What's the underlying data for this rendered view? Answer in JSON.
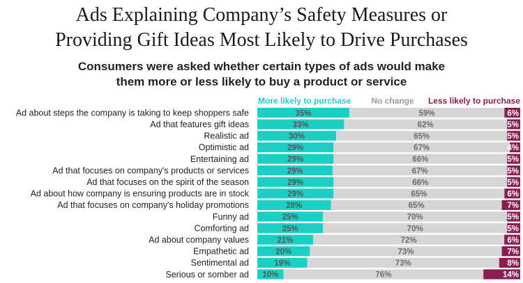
{
  "title_line1": "Ads Explaining Company’s Safety Measures or",
  "title_line2": "Providing Gift Ideas Most Likely to Drive Purchases",
  "subtitle_line1": "Consumers were asked whether certain types of ads would make",
  "subtitle_line2": "them more or less likely to buy a product or service",
  "colors": {
    "more": "#1ccfc5",
    "no_change": "#d6d6d6",
    "less": "#8a1e52",
    "more_label": "#555555",
    "no_change_label": "#6b6b6b",
    "less_label": "#ffffff"
  },
  "chart_data": {
    "type": "bar",
    "orientation": "horizontal",
    "stacked": true,
    "xlim": [
      0,
      100
    ],
    "legend_placement": "top",
    "grid": false,
    "categories": [
      "Ad about steps the company is taking to keep shoppers safe",
      "Ad that features gift ideas",
      "Realistic ad",
      "Optimistic ad",
      "Entertaining ad",
      "Ad that focuses on company's products or services",
      "Ad that focuses on the spirit of the season",
      "Ad about how company is ensuring products are in stock",
      "Ad that focuses on company's holiday promotions",
      "Funny ad",
      "Comforting ad",
      "Ad about company values",
      "Empathetic ad",
      "Sentimental ad",
      "Serious or somber ad"
    ],
    "series": [
      {
        "name": "More likely to purchase",
        "values": [
          35,
          33,
          30,
          29,
          29,
          29,
          29,
          29,
          28,
          25,
          25,
          21,
          20,
          19,
          10
        ],
        "labels": [
          "35%",
          "33%",
          "30%",
          "29%",
          "29%",
          "29%",
          "29%",
          "29%",
          "28%",
          "25%",
          "25%",
          "21%",
          "20%",
          "19%",
          "10%"
        ]
      },
      {
        "name": "No change",
        "values": [
          59,
          62,
          65,
          67,
          66,
          67,
          66,
          65,
          65,
          70,
          70,
          72,
          73,
          73,
          76
        ],
        "labels": [
          "59%",
          "62%",
          "65%",
          "67%",
          "66%",
          "67%",
          "66%",
          "65%",
          "65%",
          "70%",
          "70%",
          "72%",
          "73%",
          "73%",
          "76%"
        ]
      },
      {
        "name": "Less likely to purchase",
        "values": [
          6,
          5,
          5,
          4,
          5,
          5,
          5,
          6,
          7,
          5,
          5,
          6,
          7,
          8,
          14
        ],
        "labels": [
          "6%",
          "5%",
          "5%",
          "4%",
          "5%",
          "5%",
          "5%",
          "6%",
          "7%",
          "5%",
          "5%",
          "6%",
          "7%",
          "8%",
          "14%"
        ]
      }
    ]
  }
}
